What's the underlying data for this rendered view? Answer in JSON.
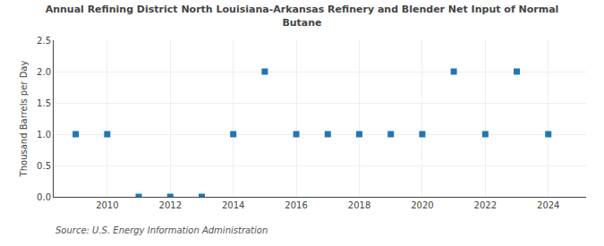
{
  "chart_data": {
    "type": "scatter",
    "title": "Annual Refining District North Louisiana-Arkansas Refinery and Blender Net Input of Normal\nButane",
    "ylabel": "Thousand Barrels per Day",
    "annotations": [
      "Source: U.S. Energy Information Administration"
    ],
    "x": [
      2009,
      2010,
      2011,
      2012,
      2013,
      2014,
      2015,
      2016,
      2017,
      2018,
      2019,
      2020,
      2021,
      2022,
      2023,
      2024
    ],
    "values": [
      1.0,
      1.0,
      0.0,
      0.0,
      0.0,
      1.0,
      2.0,
      1.0,
      1.0,
      1.0,
      1.0,
      1.0,
      2.0,
      1.0,
      2.0,
      1.0
    ],
    "marker": "square",
    "ylim": [
      0.0,
      2.5
    ],
    "yticks": [
      {
        "value": 0.0,
        "label": "0.0"
      },
      0.5,
      {
        "value": 1.0,
        "label": "1.0"
      },
      1.5,
      {
        "value": 2.0,
        "label": "2.0"
      },
      2.5
    ],
    "xlim": [
      2008.3,
      2025.2
    ],
    "xticks": [
      2010,
      2012,
      2014,
      2016,
      2018,
      2020,
      2022,
      2024
    ],
    "grid": true
  }
}
